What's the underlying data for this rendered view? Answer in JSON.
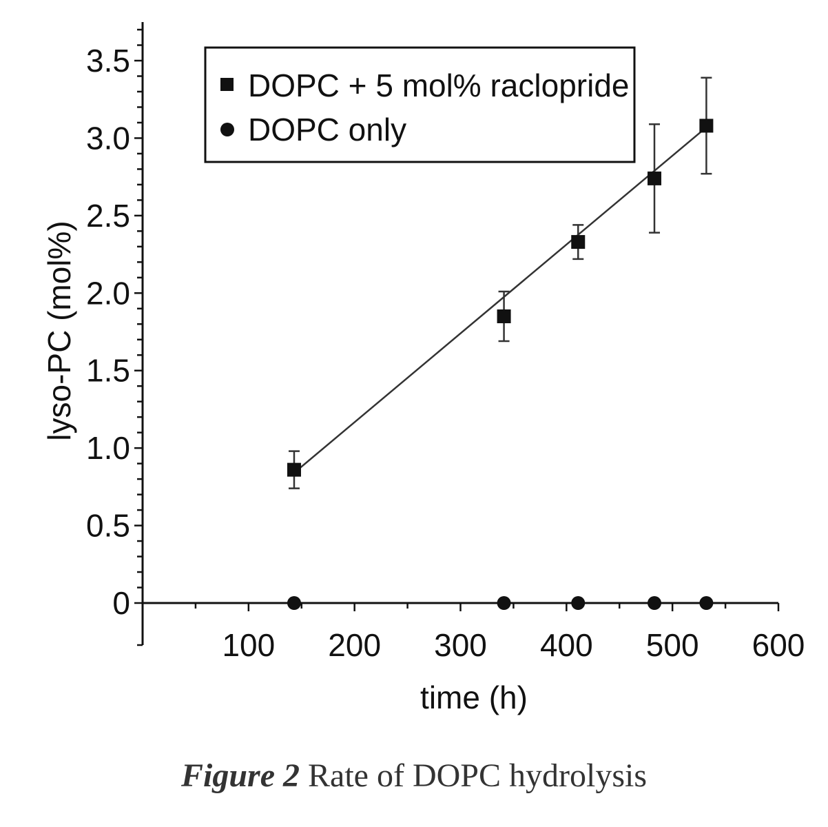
{
  "chart_data": {
    "type": "scatter",
    "xlabel": "time (h)",
    "ylabel": "lyso-PC (mol%)",
    "xlim": [
      0,
      600
    ],
    "ylim": [
      0,
      3.75
    ],
    "x_ticks": [
      100,
      200,
      300,
      400,
      500,
      600
    ],
    "x_tick_labels": [
      "100",
      "200",
      "300",
      "400",
      "500",
      "600"
    ],
    "y_ticks": [
      0,
      0.5,
      1.0,
      1.5,
      2.0,
      2.5,
      3.0,
      3.5
    ],
    "y_tick_labels": [
      "0",
      "0.5",
      "1.0",
      "1.5",
      "2.0",
      "2.5",
      "3.0",
      "3.5"
    ],
    "grid": false,
    "legend_position": "top-left",
    "series": [
      {
        "name": "DOPC + 5 mol% raclopride",
        "marker": "square",
        "x": [
          143,
          341,
          411,
          483,
          532
        ],
        "y": [
          0.86,
          1.85,
          2.33,
          2.74,
          3.08
        ],
        "error": [
          0.12,
          0.16,
          0.11,
          0.35,
          0.31
        ],
        "fit_line": {
          "x": [
            143,
            532
          ],
          "y": [
            0.84,
            3.07
          ]
        }
      },
      {
        "name": "DOPC only",
        "marker": "circle",
        "x": [
          143,
          341,
          411,
          483,
          532
        ],
        "y": [
          0,
          0,
          0,
          0,
          0
        ]
      }
    ]
  },
  "caption": {
    "figure_label": "Figure 2",
    "text": "Rate of DOPC hydrolysis"
  },
  "colors": {
    "ink": "#111111",
    "axis": "#222222"
  }
}
